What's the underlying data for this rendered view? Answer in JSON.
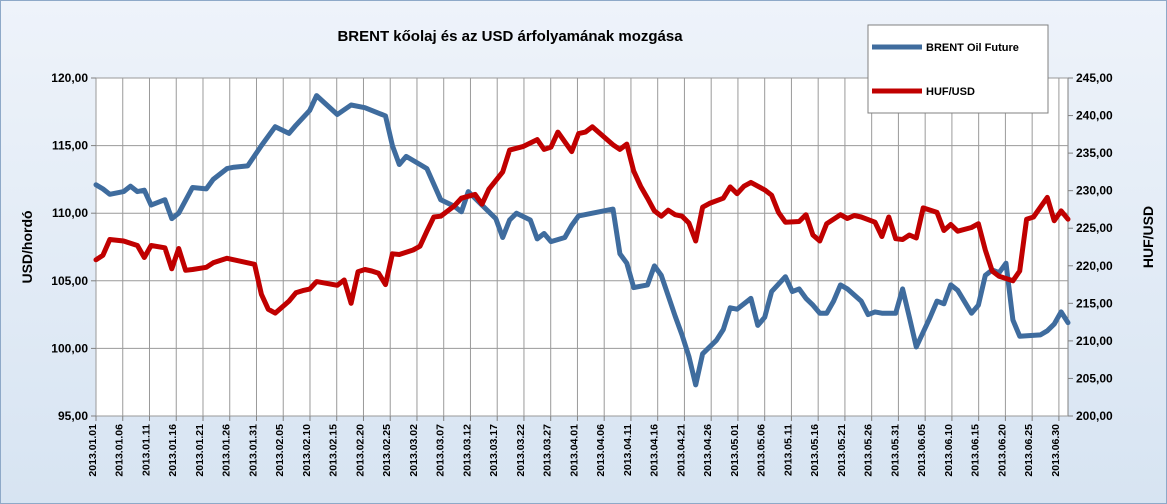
{
  "chart_data": {
    "type": "line",
    "title": "BRENT kőolaj és az USD árfolyamának mozgása",
    "ylabel_left": "USD/hordó",
    "ylabel_right": "HUF/USD",
    "ylim_left": [
      95,
      120
    ],
    "ylim_right": [
      200,
      245
    ],
    "yticks_left": [
      "95,00",
      "100,00",
      "105,00",
      "110,00",
      "115,00",
      "120,00"
    ],
    "yticks_right": [
      "200,00",
      "205,00",
      "210,00",
      "215,00",
      "220,00",
      "225,00",
      "230,00",
      "235,00",
      "240,00",
      "245,00"
    ],
    "x_dates": [
      "2013.01.01",
      "2013.01.06",
      "2013.01.11",
      "2013.01.16",
      "2013.01.21",
      "2013.01.26",
      "2013.01.31",
      "2013.02.05",
      "2013.02.10",
      "2013.02.15",
      "2013.02.20",
      "2013.02.25",
      "2013.03.02",
      "2013.03.07",
      "2013.03.12",
      "2013.03.17",
      "2013.03.22",
      "2013.03.27",
      "2013.04.01",
      "2013.04.06",
      "2013.04.11",
      "2013.04.16",
      "2013.04.21",
      "2013.04.26",
      "2013.05.01",
      "2013.05.06",
      "2013.05.11",
      "2013.05.16",
      "2013.05.21",
      "2013.05.26",
      "2013.05.31",
      "2013.06.05",
      "2013.06.10",
      "2013.06.15",
      "2013.06.20",
      "2013.06.25",
      "2013.06.30"
    ],
    "legend_position": "top-right",
    "grid": true,
    "series": [
      {
        "name": "BRENT Oil Future",
        "axis": "left",
        "color": "#3f6c9e",
        "points": [
          [
            0,
            112.1
          ],
          [
            1,
            111.8
          ],
          [
            2,
            111.4
          ],
          [
            4,
            111.6
          ],
          [
            5,
            112
          ],
          [
            6,
            111.6
          ],
          [
            7,
            111.7
          ],
          [
            8,
            110.6
          ],
          [
            10,
            111
          ],
          [
            11,
            109.6
          ],
          [
            12,
            110
          ],
          [
            14,
            111.9
          ],
          [
            16,
            111.8
          ],
          [
            17,
            112.5
          ],
          [
            19,
            113.3
          ],
          [
            20,
            113.4
          ],
          [
            22,
            113.5
          ],
          [
            24,
            115
          ],
          [
            26,
            116.4
          ],
          [
            28,
            115.9
          ],
          [
            29,
            116.5
          ],
          [
            31,
            117.6
          ],
          [
            32,
            118.7
          ],
          [
            35,
            117.3
          ],
          [
            37,
            118
          ],
          [
            39,
            117.8
          ],
          [
            42,
            117.2
          ],
          [
            43,
            115
          ],
          [
            44,
            113.6
          ],
          [
            45,
            114.2
          ],
          [
            47,
            113.6
          ],
          [
            48,
            113.3
          ],
          [
            50,
            111
          ],
          [
            52,
            110.5
          ],
          [
            53,
            110.1
          ],
          [
            54,
            111.6
          ],
          [
            56,
            110.6
          ],
          [
            58,
            109.6
          ],
          [
            59,
            108.2
          ],
          [
            60,
            109.5
          ],
          [
            61,
            110
          ],
          [
            63,
            109.5
          ],
          [
            64,
            108.1
          ],
          [
            65,
            108.5
          ],
          [
            66,
            107.9
          ],
          [
            68,
            108.2
          ],
          [
            69,
            109.1
          ],
          [
            70,
            109.8
          ],
          [
            73,
            110.1
          ],
          [
            75,
            110.3
          ],
          [
            76,
            107
          ],
          [
            77,
            106.3
          ],
          [
            78,
            104.5
          ],
          [
            80,
            104.7
          ],
          [
            81,
            106.1
          ],
          [
            82,
            105.4
          ],
          [
            83,
            103.9
          ],
          [
            84,
            102.4
          ],
          [
            85,
            101
          ],
          [
            86,
            99.4
          ],
          [
            87,
            97.3
          ],
          [
            88,
            99.6
          ],
          [
            90,
            100.6
          ],
          [
            91,
            101.4
          ],
          [
            92,
            103
          ],
          [
            93,
            102.9
          ],
          [
            95,
            103.7
          ],
          [
            96,
            101.7
          ],
          [
            97,
            102.3
          ],
          [
            98,
            104.2
          ],
          [
            100,
            105.3
          ],
          [
            101,
            104.2
          ],
          [
            102,
            104.4
          ],
          [
            103,
            103.7
          ],
          [
            104,
            103.2
          ],
          [
            105,
            102.6
          ],
          [
            106,
            102.6
          ],
          [
            107,
            103.5
          ],
          [
            108,
            104.7
          ],
          [
            109,
            104.4
          ],
          [
            111,
            103.5
          ],
          [
            112,
            102.5
          ],
          [
            113,
            102.7
          ],
          [
            114,
            102.6
          ],
          [
            116,
            102.6
          ],
          [
            117,
            104.4
          ],
          [
            118,
            102.3
          ],
          [
            119,
            100.1
          ],
          [
            121,
            102.3
          ],
          [
            122,
            103.5
          ],
          [
            123,
            103.3
          ],
          [
            124,
            104.7
          ],
          [
            125,
            104.3
          ],
          [
            127,
            102.6
          ],
          [
            128,
            103.2
          ],
          [
            129,
            105.4
          ],
          [
            130,
            105.8
          ],
          [
            131,
            105.6
          ],
          [
            132,
            106.3
          ],
          [
            133,
            102.1
          ],
          [
            134,
            100.9
          ],
          [
            137,
            101
          ],
          [
            138,
            101.3
          ],
          [
            139,
            101.8
          ],
          [
            140,
            102.7
          ],
          [
            141,
            101.9
          ]
        ]
      },
      {
        "name": "HUF/USD",
        "axis": "right",
        "color": "#c00000",
        "points": [
          [
            0,
            220.8
          ],
          [
            1,
            221.4
          ],
          [
            2,
            223.5
          ],
          [
            4,
            223.3
          ],
          [
            6,
            222.7
          ],
          [
            7,
            221.1
          ],
          [
            8,
            222.7
          ],
          [
            10,
            222.4
          ],
          [
            11,
            219.6
          ],
          [
            12,
            222.3
          ],
          [
            13,
            219.4
          ],
          [
            14,
            219.5
          ],
          [
            16,
            219.8
          ],
          [
            17,
            220.4
          ],
          [
            19,
            221
          ],
          [
            21,
            220.6
          ],
          [
            23,
            220.2
          ],
          [
            24,
            216.2
          ],
          [
            25,
            214.2
          ],
          [
            26,
            213.7
          ],
          [
            28,
            215.3
          ],
          [
            29,
            216.4
          ],
          [
            30,
            216.7
          ],
          [
            31,
            216.9
          ],
          [
            32,
            217.9
          ],
          [
            35,
            217.4
          ],
          [
            36,
            218.1
          ],
          [
            37,
            215
          ],
          [
            38,
            219.2
          ],
          [
            39,
            219.5
          ],
          [
            40,
            219.3
          ],
          [
            41,
            219
          ],
          [
            42,
            217.5
          ],
          [
            43,
            221.6
          ],
          [
            44,
            221.5
          ],
          [
            46,
            222.1
          ],
          [
            47,
            222.6
          ],
          [
            48,
            224.6
          ],
          [
            49,
            226.5
          ],
          [
            50,
            226.6
          ],
          [
            52,
            228
          ],
          [
            53,
            229
          ],
          [
            55,
            229.5
          ],
          [
            56,
            228.2
          ],
          [
            57,
            230.2
          ],
          [
            59,
            232.5
          ],
          [
            60,
            235.4
          ],
          [
            62,
            235.9
          ],
          [
            64,
            236.8
          ],
          [
            65,
            235.5
          ],
          [
            66,
            235.8
          ],
          [
            67,
            237.8
          ],
          [
            68,
            236.5
          ],
          [
            69,
            235.2
          ],
          [
            70,
            237.6
          ],
          [
            71,
            237.8
          ],
          [
            72,
            238.5
          ],
          [
            75,
            236.1
          ],
          [
            76,
            235.5
          ],
          [
            77,
            236.2
          ],
          [
            78,
            232.6
          ],
          [
            79,
            230.6
          ],
          [
            80,
            229
          ],
          [
            81,
            227.3
          ],
          [
            82,
            226.6
          ],
          [
            83,
            227.4
          ],
          [
            84,
            226.8
          ],
          [
            85,
            226.6
          ],
          [
            86,
            225.7
          ],
          [
            87,
            223.3
          ],
          [
            88,
            227.8
          ],
          [
            89,
            228.3
          ],
          [
            91,
            229
          ],
          [
            92,
            230.5
          ],
          [
            93,
            229.6
          ],
          [
            94,
            230.6
          ],
          [
            95,
            231.1
          ],
          [
            97,
            230.1
          ],
          [
            98,
            229.4
          ],
          [
            99,
            227.1
          ],
          [
            100,
            225.8
          ],
          [
            102,
            225.9
          ],
          [
            103,
            226.8
          ],
          [
            104,
            224.1
          ],
          [
            105,
            223.3
          ],
          [
            106,
            225.6
          ],
          [
            107,
            226.2
          ],
          [
            108,
            226.8
          ],
          [
            109,
            226.3
          ],
          [
            110,
            226.7
          ],
          [
            111,
            226.5
          ],
          [
            113,
            225.8
          ],
          [
            114,
            223.9
          ],
          [
            115,
            226.5
          ],
          [
            116,
            223.6
          ],
          [
            117,
            223.5
          ],
          [
            118,
            224.1
          ],
          [
            119,
            223.7
          ],
          [
            120,
            227.7
          ],
          [
            122,
            227.1
          ],
          [
            123,
            224.7
          ],
          [
            124,
            225.5
          ],
          [
            125,
            224.6
          ],
          [
            127,
            225.1
          ],
          [
            128,
            225.6
          ],
          [
            129,
            222.1
          ],
          [
            130,
            219.3
          ],
          [
            131,
            218.6
          ],
          [
            133,
            218
          ],
          [
            134,
            219.3
          ],
          [
            135,
            226.2
          ],
          [
            136,
            226.5
          ],
          [
            137,
            227.8
          ],
          [
            138,
            229.1
          ],
          [
            139,
            226
          ],
          [
            140,
            227.3
          ],
          [
            141,
            226.2
          ]
        ]
      }
    ]
  }
}
